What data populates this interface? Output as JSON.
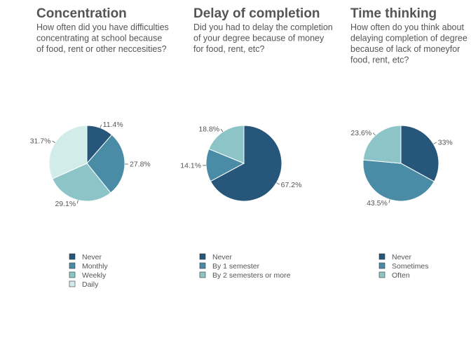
{
  "chart_data": [
    {
      "type": "pie",
      "title": "Concentration",
      "subtitle_lines": [
        "How often did you have difficulties",
        "concentrating at school because",
        "of food, rent or other neccesities?"
      ],
      "categories": [
        "Never",
        "Monthly",
        "Weekly",
        "Daily"
      ],
      "values": [
        11.4,
        27.8,
        29.1,
        31.7
      ],
      "value_labels": [
        "11.4%",
        "27.8%",
        "29.1%",
        "31.7%"
      ],
      "colors": [
        "#26567a",
        "#4a8ca6",
        "#8cc4c8",
        "#d2ecea"
      ]
    },
    {
      "type": "pie",
      "title": "Delay of completion",
      "subtitle_lines": [
        "Did you had to delay the completion",
        "of your degree because of money",
        "for food, rent, etc?"
      ],
      "categories": [
        "Never",
        "By 1 semester",
        "By 2 semesters or more"
      ],
      "values": [
        67.2,
        14.1,
        18.8
      ],
      "value_labels": [
        "67.2%",
        "14.1%",
        "18.8%"
      ],
      "colors": [
        "#26567a",
        "#4a8ca6",
        "#8cc4c8"
      ]
    },
    {
      "type": "pie",
      "title": "Time thinking",
      "subtitle_lines": [
        "How often do you think about",
        "delaying completion of degree",
        "because of lack of moneyfor",
        "food, rent, etc?"
      ],
      "categories": [
        "Never",
        "Sometimes",
        "Often"
      ],
      "values": [
        33,
        43.5,
        23.6
      ],
      "value_labels": [
        "33%",
        "43.5%",
        "23.6%"
      ],
      "colors": [
        "#26567a",
        "#4a8ca6",
        "#8cc4c8"
      ]
    }
  ]
}
